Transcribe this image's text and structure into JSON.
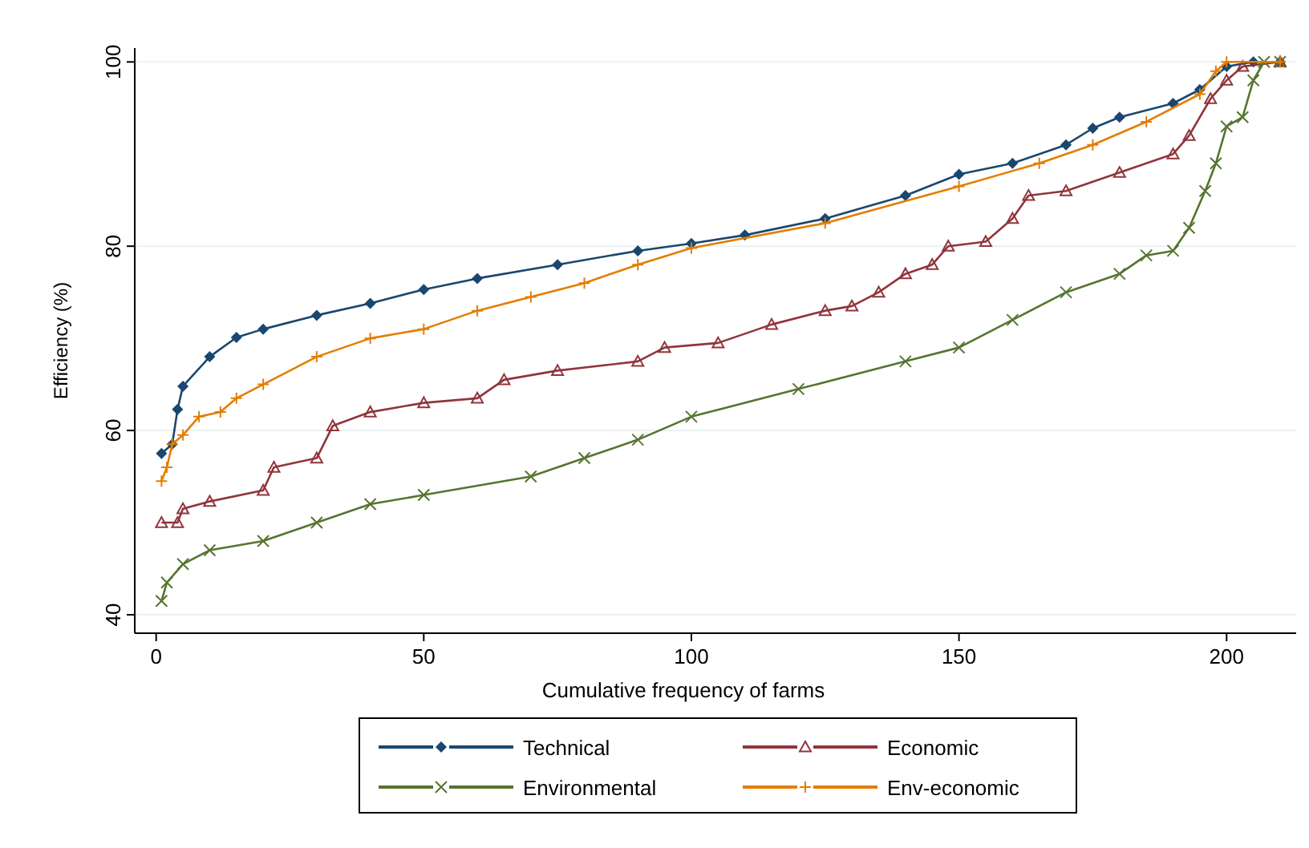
{
  "chart_data": {
    "type": "line",
    "xlabel": "Cumulative frequency of farms",
    "ylabel": "Efficiency (%)",
    "xlim": [
      -4,
      213
    ],
    "ylim": [
      38,
      101.5
    ],
    "xticks": [
      0,
      50,
      100,
      150,
      200
    ],
    "yticks": [
      40,
      60,
      80,
      100
    ],
    "grid": "y",
    "legend": "bottom",
    "line_style": "solid",
    "series": [
      {
        "name": "Technical",
        "color": "#1a476f",
        "marker": "diamond",
        "x": [
          1,
          3,
          4,
          5,
          10,
          15,
          20,
          30,
          40,
          50,
          60,
          75,
          90,
          100,
          110,
          125,
          140,
          150,
          160,
          170,
          175,
          180,
          190,
          195,
          200,
          205,
          210
        ],
        "values": [
          57.5,
          58.5,
          62.3,
          64.8,
          68,
          70.1,
          71,
          72.5,
          73.8,
          75.3,
          76.5,
          78,
          79.5,
          80.3,
          81.2,
          83,
          85.5,
          87.8,
          89,
          91,
          92.8,
          94,
          95.5,
          97,
          99.5,
          100,
          100
        ]
      },
      {
        "name": "Economic",
        "color": "#90353b",
        "marker": "triangle",
        "x": [
          1,
          4,
          5,
          10,
          20,
          22,
          30,
          33,
          40,
          50,
          60,
          65,
          75,
          90,
          95,
          105,
          115,
          125,
          130,
          135,
          140,
          145,
          148,
          155,
          160,
          163,
          170,
          180,
          190,
          193,
          197,
          200,
          203,
          210
        ],
        "values": [
          50,
          50,
          51.5,
          52.3,
          53.5,
          56,
          57,
          60.5,
          62,
          63,
          63.5,
          65.5,
          66.5,
          67.5,
          69,
          69.5,
          71.5,
          73,
          73.5,
          75,
          77,
          78,
          80,
          80.5,
          83,
          85.5,
          86,
          88,
          90,
          92,
          96,
          98,
          99.5,
          100
        ]
      },
      {
        "name": "Environmental",
        "color": "#55752f",
        "marker": "cross",
        "x": [
          1,
          2,
          5,
          10,
          20,
          30,
          40,
          50,
          70,
          80,
          90,
          100,
          120,
          140,
          150,
          160,
          170,
          180,
          185,
          190,
          193,
          196,
          198,
          200,
          203,
          205,
          207,
          210
        ],
        "values": [
          41.5,
          43.5,
          45.5,
          47,
          48,
          50,
          52,
          53,
          55,
          57,
          59,
          61.5,
          64.5,
          67.5,
          69,
          72,
          75,
          77,
          79,
          79.5,
          82,
          86,
          89,
          93,
          94,
          98,
          100,
          100
        ]
      },
      {
        "name": "Env-economic",
        "color": "#e37e00",
        "marker": "plus",
        "x": [
          1,
          2,
          3,
          5,
          8,
          12,
          15,
          20,
          30,
          40,
          50,
          60,
          70,
          80,
          90,
          100,
          125,
          150,
          165,
          175,
          185,
          195,
          198,
          200,
          210
        ],
        "values": [
          54.5,
          56,
          58.5,
          59.5,
          61.5,
          62,
          63.5,
          65,
          68,
          70,
          71,
          73,
          74.5,
          76,
          78,
          79.8,
          82.5,
          86.5,
          89,
          91,
          93.5,
          96.5,
          99,
          100,
          100
        ]
      }
    ]
  }
}
